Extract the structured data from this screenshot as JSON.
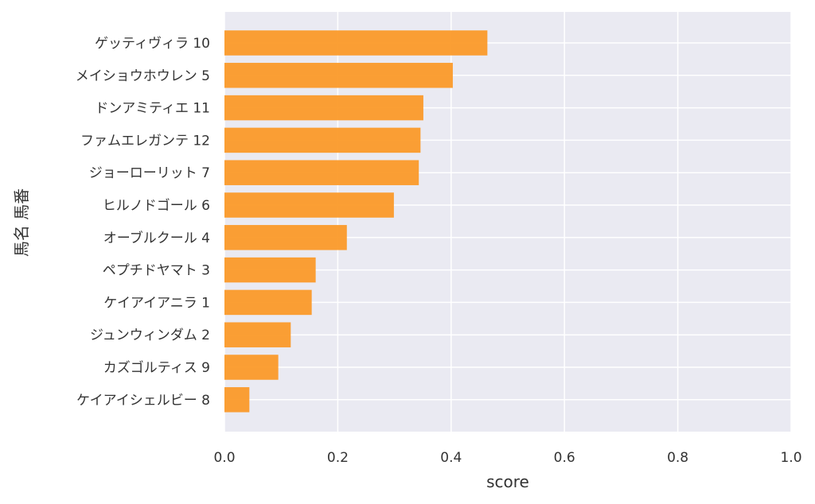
{
  "chart_data": {
    "type": "bar",
    "orientation": "horizontal",
    "xlabel": "score",
    "ylabel": "馬名 馬番",
    "xlim": [
      0.0,
      1.0
    ],
    "xticks": [
      "0.0",
      "0.2",
      "0.4",
      "0.6",
      "0.8",
      "1.0"
    ],
    "grid": true,
    "bar_color": "#fb9a29",
    "plot_background": "#eaeaf2",
    "categories": [
      "ゲッティヴィラ 10",
      "メイショウホウレン 5",
      "ドンアミティエ 11",
      "ファムエレガンテ 12",
      "ジョーローリット 7",
      "ヒルノドゴール 6",
      "オーブルクール 4",
      "ペプチドヤマト 3",
      "ケイアイアニラ 1",
      "ジュンウィンダム 2",
      "カズゴルティス 9",
      "ケイアイシェルビー 8"
    ],
    "values": [
      0.464,
      0.403,
      0.351,
      0.346,
      0.343,
      0.299,
      0.216,
      0.161,
      0.154,
      0.117,
      0.095,
      0.044
    ]
  }
}
